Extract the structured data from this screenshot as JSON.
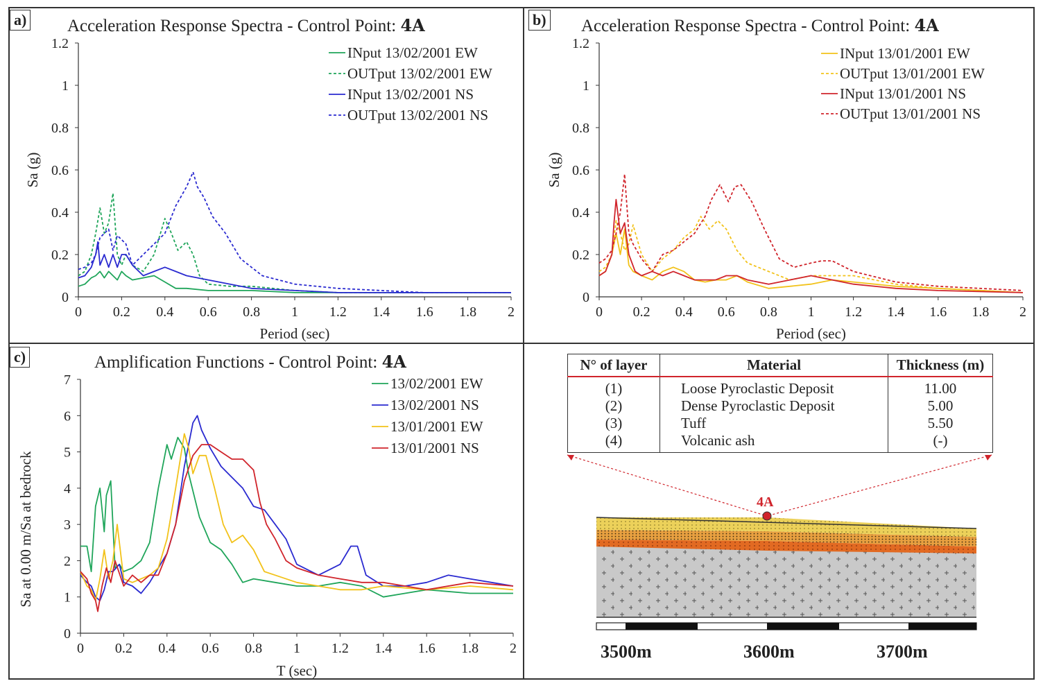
{
  "panels": {
    "a": {
      "label": "a)",
      "title": "Acceleration Response Spectra - Control Point:",
      "title_bold": "4A"
    },
    "b": {
      "label": "b)",
      "title": "Acceleration Response Spectra - Control Point:",
      "title_bold": "4A"
    },
    "c": {
      "label": "c)",
      "title": "Amplification Functions - Control Point:",
      "title_bold": "4A"
    }
  },
  "chart_data": [
    {
      "id": "a",
      "type": "line",
      "title": "Acceleration Response Spectra - Control Point: 4A",
      "xlabel": "Period (sec)",
      "ylabel": "Sa (g)",
      "xlim": [
        0,
        2
      ],
      "ylim": [
        0,
        1.2
      ],
      "xticks": [
        "0",
        "0.2",
        "0.4",
        "0.6",
        "0.8",
        "1",
        "1.2",
        "1.4",
        "1.6",
        "1.8",
        "2"
      ],
      "yticks": [
        "0",
        "0.2",
        "0.4",
        "0.6",
        "0.8",
        "1",
        "1.2"
      ],
      "legend_position": "top-right",
      "series": [
        {
          "name": "INput 13/02/2001 EW",
          "color": "#1fa55a",
          "dash": false,
          "x": [
            0,
            0.03,
            0.06,
            0.08,
            0.1,
            0.12,
            0.14,
            0.16,
            0.18,
            0.2,
            0.22,
            0.25,
            0.3,
            0.35,
            0.4,
            0.45,
            0.5,
            0.6,
            0.8,
            1.0,
            1.2,
            1.5,
            2.0
          ],
          "y": [
            0.05,
            0.06,
            0.09,
            0.1,
            0.12,
            0.09,
            0.12,
            0.1,
            0.08,
            0.12,
            0.1,
            0.08,
            0.09,
            0.1,
            0.07,
            0.04,
            0.04,
            0.03,
            0.03,
            0.02,
            0.02,
            0.02,
            0.02
          ]
        },
        {
          "name": "OUTput 13/02/2001 EW",
          "color": "#1fa55a",
          "dash": true,
          "x": [
            0,
            0.03,
            0.06,
            0.08,
            0.1,
            0.12,
            0.14,
            0.16,
            0.18,
            0.2,
            0.22,
            0.25,
            0.3,
            0.35,
            0.4,
            0.43,
            0.46,
            0.5,
            0.53,
            0.56,
            0.6,
            0.7,
            0.8,
            1.0,
            1.2,
            1.5,
            2.0
          ],
          "y": [
            0.1,
            0.12,
            0.2,
            0.3,
            0.42,
            0.3,
            0.35,
            0.49,
            0.2,
            0.15,
            0.2,
            0.15,
            0.12,
            0.2,
            0.37,
            0.3,
            0.22,
            0.26,
            0.2,
            0.1,
            0.06,
            0.05,
            0.05,
            0.03,
            0.02,
            0.02,
            0.02
          ]
        },
        {
          "name": "INput 13/02/2001 NS",
          "color": "#2a2ad0",
          "dash": false,
          "x": [
            0,
            0.03,
            0.06,
            0.08,
            0.09,
            0.1,
            0.12,
            0.14,
            0.16,
            0.18,
            0.2,
            0.22,
            0.25,
            0.3,
            0.35,
            0.4,
            0.45,
            0.5,
            0.6,
            0.8,
            1.0,
            1.2,
            1.5,
            2.0
          ],
          "y": [
            0.09,
            0.1,
            0.14,
            0.2,
            0.26,
            0.15,
            0.2,
            0.14,
            0.2,
            0.14,
            0.2,
            0.2,
            0.15,
            0.1,
            0.12,
            0.14,
            0.12,
            0.1,
            0.08,
            0.04,
            0.03,
            0.02,
            0.02,
            0.02
          ]
        },
        {
          "name": "OUTput 13/02/2001 NS",
          "color": "#2a2ad0",
          "dash": true,
          "x": [
            0,
            0.03,
            0.06,
            0.08,
            0.1,
            0.12,
            0.14,
            0.16,
            0.18,
            0.2,
            0.22,
            0.25,
            0.3,
            0.35,
            0.4,
            0.45,
            0.5,
            0.53,
            0.55,
            0.58,
            0.62,
            0.68,
            0.75,
            0.85,
            1.0,
            1.2,
            1.4,
            1.6,
            2.0
          ],
          "y": [
            0.13,
            0.14,
            0.16,
            0.2,
            0.28,
            0.3,
            0.32,
            0.22,
            0.29,
            0.27,
            0.25,
            0.15,
            0.2,
            0.25,
            0.3,
            0.43,
            0.52,
            0.59,
            0.52,
            0.47,
            0.38,
            0.3,
            0.18,
            0.1,
            0.06,
            0.04,
            0.03,
            0.02,
            0.02
          ]
        }
      ]
    },
    {
      "id": "b",
      "type": "line",
      "title": "Acceleration Response Spectra - Control Point: 4A",
      "xlabel": "Period (sec)",
      "ylabel": "Sa (g)",
      "xlim": [
        0,
        2
      ],
      "ylim": [
        0,
        1.2
      ],
      "xticks": [
        "0",
        "0.2",
        "0.4",
        "0.6",
        "0.8",
        "1",
        "1.2",
        "1.4",
        "1.6",
        "1.8",
        "2"
      ],
      "yticks": [
        "0",
        "0.2",
        "0.4",
        "0.6",
        "0.8",
        "1",
        "1.2"
      ],
      "legend_position": "top-right",
      "series": [
        {
          "name": "INput 13/01/2001 EW",
          "color": "#f2c21a",
          "dash": false,
          "x": [
            0,
            0.03,
            0.06,
            0.08,
            0.1,
            0.12,
            0.14,
            0.16,
            0.2,
            0.25,
            0.3,
            0.35,
            0.4,
            0.45,
            0.5,
            0.55,
            0.6,
            0.65,
            0.7,
            0.8,
            0.9,
            1.0,
            1.1,
            1.2,
            1.4,
            1.6,
            2.0
          ],
          "y": [
            0.1,
            0.12,
            0.2,
            0.3,
            0.2,
            0.32,
            0.15,
            0.12,
            0.1,
            0.08,
            0.12,
            0.14,
            0.12,
            0.08,
            0.07,
            0.08,
            0.08,
            0.1,
            0.07,
            0.04,
            0.05,
            0.06,
            0.08,
            0.07,
            0.05,
            0.04,
            0.02
          ]
        },
        {
          "name": "OUTput 13/01/2001 EW",
          "color": "#f2c21a",
          "dash": true,
          "x": [
            0,
            0.03,
            0.06,
            0.08,
            0.1,
            0.12,
            0.14,
            0.16,
            0.2,
            0.25,
            0.3,
            0.35,
            0.4,
            0.45,
            0.48,
            0.52,
            0.56,
            0.6,
            0.65,
            0.7,
            0.8,
            0.9,
            1.0,
            1.2,
            1.4,
            1.6,
            2.0
          ],
          "y": [
            0.12,
            0.14,
            0.2,
            0.36,
            0.3,
            0.22,
            0.25,
            0.34,
            0.2,
            0.12,
            0.18,
            0.22,
            0.28,
            0.32,
            0.38,
            0.32,
            0.36,
            0.32,
            0.22,
            0.16,
            0.12,
            0.08,
            0.1,
            0.1,
            0.06,
            0.04,
            0.02
          ]
        },
        {
          "name": "INput 13/01/2001 NS",
          "color": "#d0242b",
          "dash": false,
          "x": [
            0,
            0.03,
            0.06,
            0.07,
            0.08,
            0.1,
            0.12,
            0.14,
            0.17,
            0.2,
            0.25,
            0.3,
            0.35,
            0.4,
            0.45,
            0.5,
            0.55,
            0.6,
            0.65,
            0.7,
            0.8,
            0.9,
            1.0,
            1.1,
            1.2,
            1.4,
            1.6,
            2.0
          ],
          "y": [
            0.1,
            0.12,
            0.2,
            0.35,
            0.46,
            0.3,
            0.35,
            0.2,
            0.12,
            0.1,
            0.12,
            0.1,
            0.12,
            0.1,
            0.08,
            0.08,
            0.08,
            0.1,
            0.1,
            0.08,
            0.06,
            0.08,
            0.1,
            0.08,
            0.06,
            0.04,
            0.03,
            0.02
          ]
        },
        {
          "name": "OUTput 13/01/2001 NS",
          "color": "#d0242b",
          "dash": true,
          "x": [
            0,
            0.03,
            0.06,
            0.08,
            0.1,
            0.12,
            0.14,
            0.16,
            0.2,
            0.25,
            0.3,
            0.35,
            0.4,
            0.45,
            0.5,
            0.53,
            0.57,
            0.61,
            0.64,
            0.67,
            0.72,
            0.78,
            0.85,
            0.92,
            1.0,
            1.05,
            1.1,
            1.2,
            1.4,
            1.6,
            2.0
          ],
          "y": [
            0.16,
            0.18,
            0.22,
            0.3,
            0.4,
            0.58,
            0.3,
            0.25,
            0.18,
            0.12,
            0.2,
            0.22,
            0.26,
            0.3,
            0.38,
            0.46,
            0.53,
            0.45,
            0.52,
            0.53,
            0.45,
            0.32,
            0.18,
            0.14,
            0.16,
            0.17,
            0.17,
            0.12,
            0.07,
            0.05,
            0.03
          ]
        }
      ]
    },
    {
      "id": "c",
      "type": "line",
      "title": "Amplification Functions - Control Point: 4A",
      "xlabel": "T (sec)",
      "ylabel": "Sa at 0.00 m/Sa at bedrock",
      "xlim": [
        0,
        2
      ],
      "ylim": [
        0,
        7
      ],
      "xticks": [
        "0",
        "0.2",
        "0.4",
        "0.6",
        "0.8",
        "1",
        "1.2",
        "1.4",
        "1.6",
        "1.8",
        "2"
      ],
      "yticks": [
        "0",
        "1",
        "2",
        "3",
        "4",
        "5",
        "6",
        "7"
      ],
      "legend_position": "top-right",
      "series": [
        {
          "name": "13/02/2001 EW",
          "color": "#1fa55a",
          "dash": false,
          "x": [
            0,
            0.03,
            0.05,
            0.07,
            0.09,
            0.11,
            0.12,
            0.14,
            0.16,
            0.18,
            0.2,
            0.24,
            0.28,
            0.32,
            0.36,
            0.4,
            0.42,
            0.45,
            0.48,
            0.5,
            0.55,
            0.6,
            0.65,
            0.7,
            0.75,
            0.8,
            0.9,
            1.0,
            1.1,
            1.2,
            1.3,
            1.4,
            1.5,
            1.6,
            1.8,
            2.0
          ],
          "y": [
            2.4,
            2.4,
            1.7,
            3.5,
            4.0,
            2.8,
            3.8,
            4.2,
            1.8,
            1.9,
            1.7,
            1.8,
            2.0,
            2.5,
            4.0,
            5.2,
            4.8,
            5.4,
            5.1,
            4.4,
            3.2,
            2.5,
            2.3,
            1.9,
            1.4,
            1.5,
            1.4,
            1.3,
            1.3,
            1.4,
            1.3,
            1.0,
            1.1,
            1.2,
            1.1,
            1.1
          ]
        },
        {
          "name": "13/02/2001 NS",
          "color": "#2a2ad0",
          "dash": false,
          "x": [
            0,
            0.03,
            0.05,
            0.07,
            0.09,
            0.11,
            0.13,
            0.15,
            0.18,
            0.2,
            0.24,
            0.28,
            0.32,
            0.36,
            0.4,
            0.44,
            0.48,
            0.52,
            0.54,
            0.56,
            0.6,
            0.65,
            0.7,
            0.75,
            0.8,
            0.85,
            0.9,
            0.95,
            1.0,
            1.1,
            1.2,
            1.25,
            1.28,
            1.32,
            1.4,
            1.5,
            1.6,
            1.7,
            1.8,
            1.9,
            2.0
          ],
          "y": [
            1.6,
            1.4,
            1.3,
            1.0,
            0.9,
            1.2,
            1.7,
            1.7,
            1.9,
            1.4,
            1.3,
            1.1,
            1.4,
            1.8,
            2.2,
            3.0,
            4.6,
            5.8,
            6.0,
            5.6,
            5.1,
            4.6,
            4.3,
            4.0,
            3.5,
            3.4,
            3.0,
            2.6,
            1.9,
            1.6,
            1.9,
            2.4,
            2.4,
            1.6,
            1.3,
            1.3,
            1.4,
            1.6,
            1.5,
            1.4,
            1.3
          ]
        },
        {
          "name": "13/01/2001 EW",
          "color": "#f2c21a",
          "dash": false,
          "x": [
            0,
            0.03,
            0.05,
            0.07,
            0.09,
            0.11,
            0.13,
            0.15,
            0.17,
            0.2,
            0.24,
            0.28,
            0.32,
            0.36,
            0.4,
            0.44,
            0.48,
            0.5,
            0.52,
            0.55,
            0.58,
            0.62,
            0.66,
            0.7,
            0.75,
            0.8,
            0.85,
            0.9,
            1.0,
            1.1,
            1.2,
            1.3,
            1.4,
            1.6,
            1.8,
            2.0
          ],
          "y": [
            1.7,
            1.3,
            1.2,
            0.9,
            1.5,
            2.3,
            1.5,
            2.0,
            3.0,
            1.5,
            1.4,
            1.5,
            1.6,
            1.8,
            2.6,
            4.0,
            5.5,
            5.1,
            4.4,
            4.9,
            4.9,
            4.0,
            3.0,
            2.5,
            2.7,
            2.3,
            1.7,
            1.6,
            1.4,
            1.3,
            1.2,
            1.2,
            1.3,
            1.2,
            1.3,
            1.2
          ]
        },
        {
          "name": "13/01/2001 NS",
          "color": "#d0242b",
          "dash": false,
          "x": [
            0,
            0.03,
            0.05,
            0.07,
            0.08,
            0.1,
            0.12,
            0.14,
            0.16,
            0.2,
            0.24,
            0.28,
            0.32,
            0.36,
            0.4,
            0.44,
            0.48,
            0.52,
            0.56,
            0.6,
            0.65,
            0.7,
            0.75,
            0.8,
            0.83,
            0.86,
            0.9,
            0.95,
            1.0,
            1.1,
            1.2,
            1.3,
            1.4,
            1.5,
            1.6,
            1.8,
            2.0
          ],
          "y": [
            1.7,
            1.5,
            1.1,
            0.9,
            0.6,
            1.3,
            1.8,
            1.4,
            2.0,
            1.3,
            1.6,
            1.4,
            1.6,
            1.6,
            2.2,
            3.0,
            4.2,
            4.9,
            5.2,
            5.2,
            5.0,
            4.8,
            4.8,
            4.5,
            3.6,
            3.0,
            2.6,
            2.0,
            1.8,
            1.6,
            1.5,
            1.4,
            1.4,
            1.3,
            1.2,
            1.4,
            1.3
          ]
        }
      ]
    }
  ],
  "layer_table": {
    "headers": [
      "N° of layer",
      "Material",
      "Thickness (m)"
    ],
    "rows": [
      {
        "num": "(1)",
        "material": "Loose Pyroclastic Deposit",
        "thickness": "11.00"
      },
      {
        "num": "(2)",
        "material": "Dense Pyroclastic Deposit",
        "thickness": "5.00"
      },
      {
        "num": "(3)",
        "material": "Tuff",
        "thickness": "5.50"
      },
      {
        "num": "(4)",
        "material": "Volcanic ash",
        "thickness": "(-)"
      }
    ]
  },
  "cross_section": {
    "site_label": "4A",
    "scale_labels": [
      "3500m",
      "3600m",
      "3700m"
    ],
    "colors": {
      "loose_pyroclastic": "#e8c44a",
      "dense_pyroclastic": "#e8762a",
      "tuff": "#d04a1a",
      "volcanic_ash": "#c8c8c8",
      "marker": "#d0242b"
    }
  }
}
